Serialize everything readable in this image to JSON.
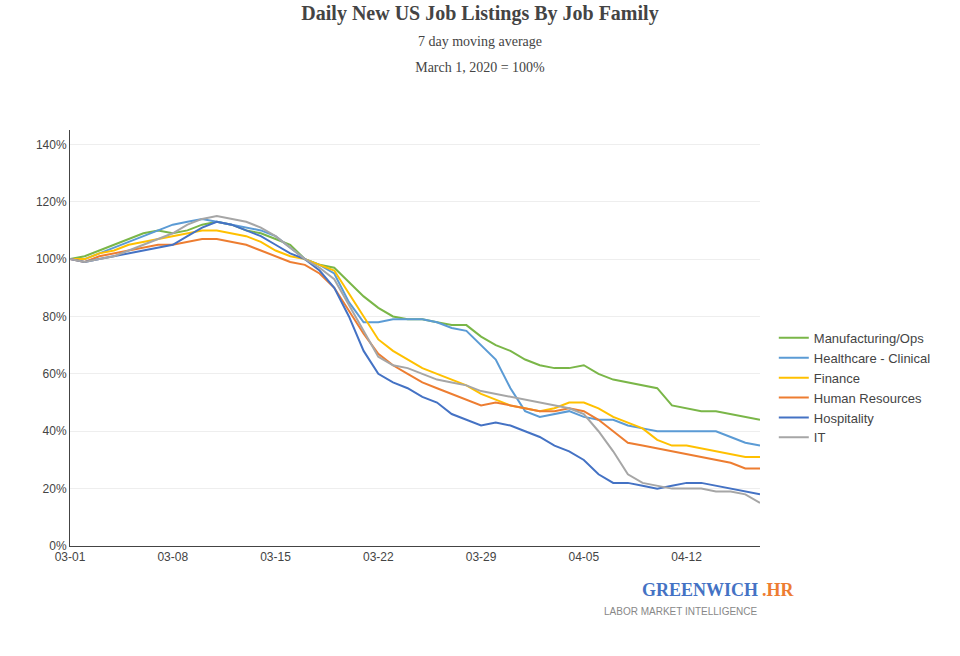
{
  "chart_data": {
    "type": "line",
    "title": "Daily New US Job Listings By Job Family",
    "subtitle": [
      "7 day moving average",
      "March 1, 2020 = 100%"
    ],
    "annotations": [
      {
        "text": "GREENWICH",
        "color": "#4472c4"
      },
      {
        "text": ".HR",
        "color": "#ed7d31"
      },
      {
        "text": "LABOR MARKET INTELLIGENCE",
        "color": "#888888"
      }
    ],
    "categories": [
      "03-01",
      null,
      null,
      null,
      null,
      null,
      null,
      "03-08",
      null,
      null,
      null,
      null,
      null,
      null,
      "03-15",
      null,
      null,
      null,
      null,
      null,
      null,
      "03-22",
      null,
      null,
      null,
      null,
      null,
      null,
      "03-29",
      null,
      null,
      null,
      null,
      null,
      null,
      "04-05",
      null,
      null,
      null,
      null,
      null,
      null,
      "04-12",
      null,
      null,
      null,
      null,
      null
    ],
    "ylim": [
      0,
      1.45
    ],
    "yticks": [
      {
        "value": 0.0,
        "label": "0%"
      },
      {
        "value": 0.2,
        "label": "20%"
      },
      {
        "value": 0.4,
        "label": "40%"
      },
      {
        "value": 0.6,
        "label": "60%"
      },
      {
        "value": 0.8,
        "label": "80%"
      },
      {
        "value": 1.0,
        "label": "100%"
      },
      {
        "value": 1.2,
        "label": "120%"
      },
      {
        "value": 1.4,
        "label": "140%"
      }
    ],
    "grid": true,
    "legend": "right",
    "series": [
      {
        "name": "Manufacturing/Ops",
        "color": "#7ab648",
        "values": [
          1.0,
          1.01,
          1.03,
          1.05,
          1.07,
          1.09,
          1.1,
          1.09,
          1.1,
          1.12,
          1.13,
          1.12,
          1.1,
          1.09,
          1.07,
          1.05,
          1.0,
          0.98,
          0.97,
          0.92,
          0.87,
          0.83,
          0.8,
          0.79,
          0.79,
          0.78,
          0.77,
          0.77,
          0.73,
          0.7,
          0.68,
          0.65,
          0.63,
          0.62,
          0.62,
          0.63,
          0.6,
          0.58,
          0.57,
          0.56,
          0.55,
          0.49,
          0.48,
          0.47,
          0.47,
          0.46,
          0.45,
          0.44
        ]
      },
      {
        "name": "Healthcare - Clinical",
        "color": "#5b9bd5",
        "values": [
          1.0,
          1.0,
          1.02,
          1.04,
          1.06,
          1.08,
          1.1,
          1.12,
          1.13,
          1.14,
          1.13,
          1.12,
          1.11,
          1.1,
          1.08,
          1.04,
          1.0,
          0.98,
          0.95,
          0.85,
          0.78,
          0.78,
          0.79,
          0.79,
          0.79,
          0.78,
          0.76,
          0.75,
          0.7,
          0.65,
          0.55,
          0.47,
          0.45,
          0.46,
          0.47,
          0.45,
          0.44,
          0.44,
          0.42,
          0.41,
          0.4,
          0.4,
          0.4,
          0.4,
          0.4,
          0.38,
          0.36,
          0.35
        ]
      },
      {
        "name": "Finance",
        "color": "#ffc000",
        "values": [
          1.0,
          1.0,
          1.02,
          1.03,
          1.05,
          1.06,
          1.07,
          1.08,
          1.09,
          1.1,
          1.1,
          1.09,
          1.08,
          1.06,
          1.03,
          1.01,
          1.0,
          0.98,
          0.96,
          0.88,
          0.8,
          0.72,
          0.68,
          0.65,
          0.62,
          0.6,
          0.58,
          0.56,
          0.53,
          0.51,
          0.49,
          0.48,
          0.47,
          0.48,
          0.5,
          0.5,
          0.48,
          0.45,
          0.43,
          0.41,
          0.37,
          0.35,
          0.35,
          0.34,
          0.33,
          0.32,
          0.31,
          0.31
        ]
      },
      {
        "name": "Human Resources",
        "color": "#ed7d31",
        "values": [
          1.0,
          0.99,
          1.01,
          1.02,
          1.03,
          1.04,
          1.05,
          1.05,
          1.06,
          1.07,
          1.07,
          1.06,
          1.05,
          1.03,
          1.01,
          0.99,
          0.98,
          0.95,
          0.9,
          0.82,
          0.74,
          0.67,
          0.63,
          0.6,
          0.57,
          0.55,
          0.53,
          0.51,
          0.49,
          0.5,
          0.49,
          0.48,
          0.47,
          0.47,
          0.48,
          0.47,
          0.44,
          0.4,
          0.36,
          0.35,
          0.34,
          0.33,
          0.32,
          0.31,
          0.3,
          0.29,
          0.27,
          0.27
        ]
      },
      {
        "name": "Hospitality",
        "color": "#4472c4",
        "values": [
          1.0,
          0.99,
          1.0,
          1.01,
          1.02,
          1.03,
          1.04,
          1.05,
          1.08,
          1.11,
          1.13,
          1.12,
          1.1,
          1.08,
          1.05,
          1.02,
          1.0,
          0.96,
          0.9,
          0.8,
          0.68,
          0.6,
          0.57,
          0.55,
          0.52,
          0.5,
          0.46,
          0.44,
          0.42,
          0.43,
          0.42,
          0.4,
          0.38,
          0.35,
          0.33,
          0.3,
          0.25,
          0.22,
          0.22,
          0.21,
          0.2,
          0.21,
          0.22,
          0.22,
          0.21,
          0.2,
          0.19,
          0.18
        ]
      },
      {
        "name": "IT",
        "color": "#a6a6a6",
        "values": [
          1.0,
          0.99,
          1.0,
          1.01,
          1.03,
          1.05,
          1.07,
          1.09,
          1.12,
          1.14,
          1.15,
          1.14,
          1.13,
          1.11,
          1.08,
          1.04,
          1.0,
          0.97,
          0.93,
          0.84,
          0.75,
          0.66,
          0.63,
          0.62,
          0.6,
          0.58,
          0.57,
          0.56,
          0.54,
          0.53,
          0.52,
          0.51,
          0.5,
          0.49,
          0.48,
          0.46,
          0.4,
          0.33,
          0.25,
          0.22,
          0.21,
          0.2,
          0.2,
          0.2,
          0.19,
          0.19,
          0.18,
          0.15
        ]
      }
    ]
  }
}
